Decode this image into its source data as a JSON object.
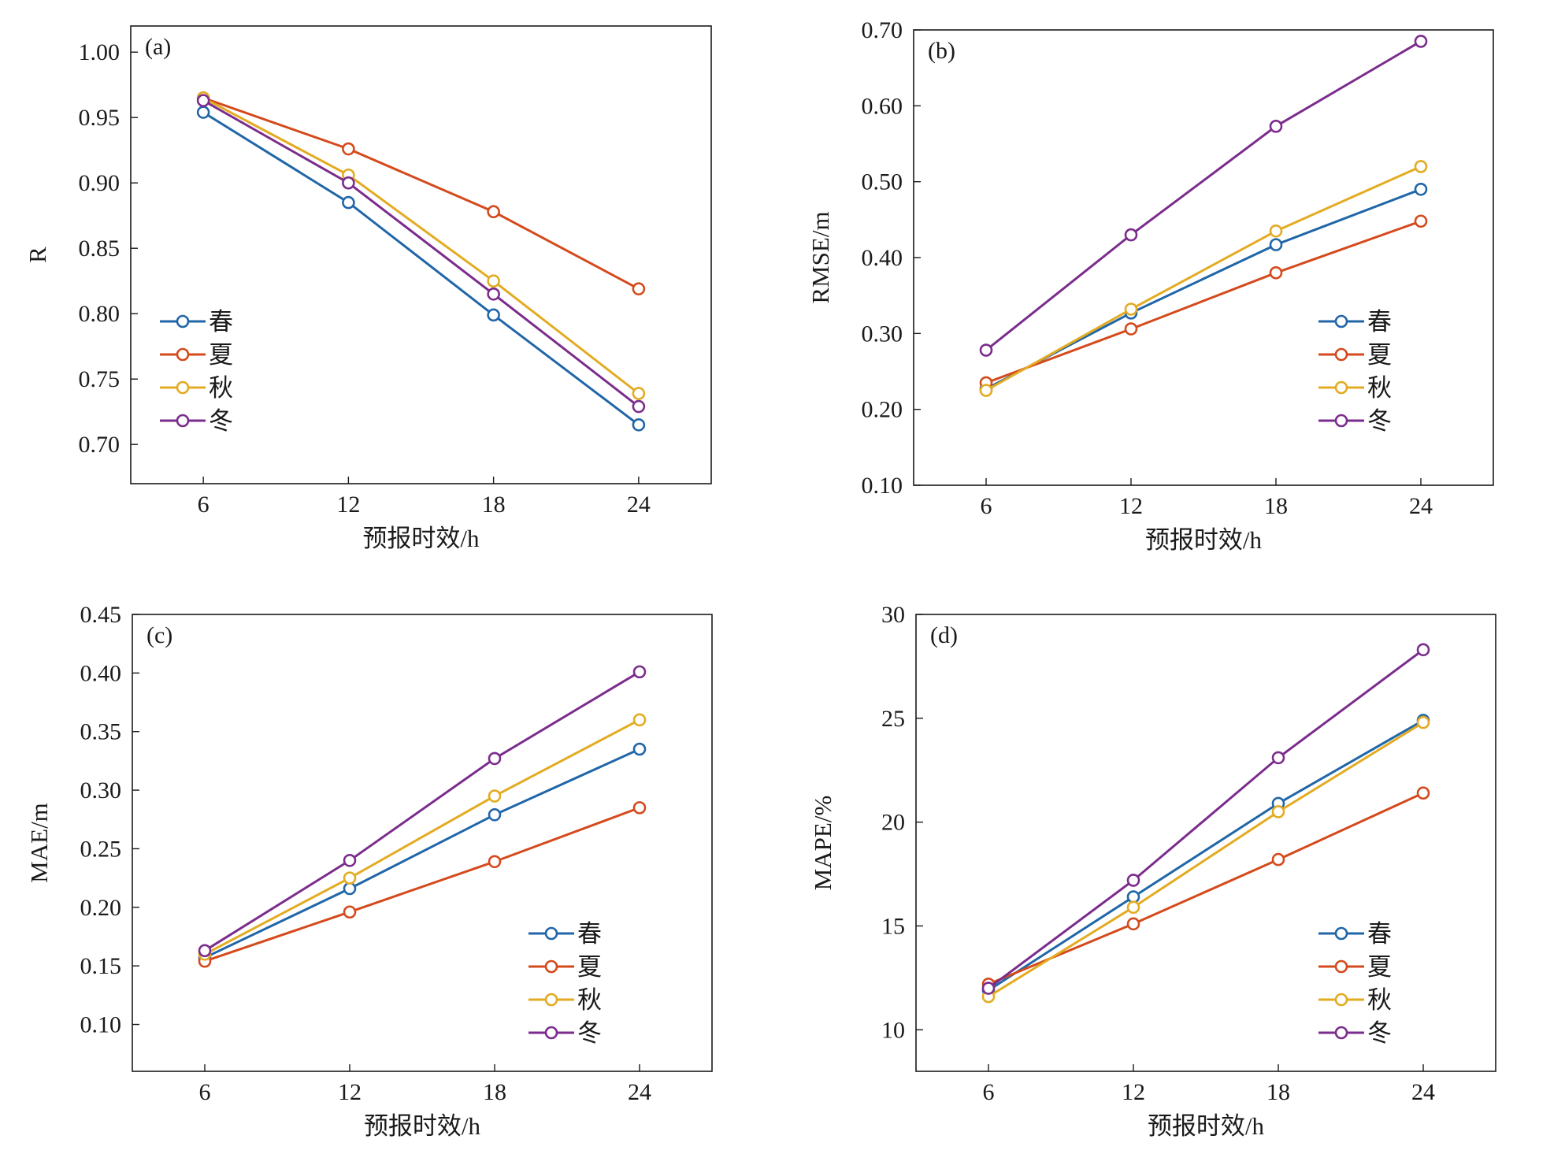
{
  "colors": {
    "春": "#2066a8",
    "夏": "#d44a1c",
    "秋": "#e3ab21",
    "冬": "#7b2c8c"
  },
  "chart_data": [
    {
      "type": "line",
      "panel_label": "(a)",
      "xlabel": "预报时效/h",
      "ylabel": "R",
      "x": [
        6,
        12,
        18,
        24
      ],
      "x_ticks": [
        "6",
        "12",
        "18",
        "24"
      ],
      "xlim": [
        3,
        27
      ],
      "ylim": [
        0.67,
        1.02
      ],
      "y_ticks": [
        "0.70",
        "0.75",
        "0.80",
        "0.85",
        "0.90",
        "0.95",
        "1.00"
      ],
      "legend_position": "center-left",
      "grid": false,
      "series": [
        {
          "name": "春",
          "values": [
            0.954,
            0.885,
            0.799,
            0.715
          ]
        },
        {
          "name": "夏",
          "values": [
            0.965,
            0.926,
            0.878,
            0.819
          ]
        },
        {
          "name": "秋",
          "values": [
            0.965,
            0.906,
            0.825,
            0.739
          ]
        },
        {
          "name": "冬",
          "values": [
            0.963,
            0.9,
            0.815,
            0.729
          ]
        }
      ]
    },
    {
      "type": "line",
      "panel_label": "(b)",
      "xlabel": "预报时效/h",
      "ylabel": "RMSE/m",
      "x": [
        6,
        12,
        18,
        24
      ],
      "x_ticks": [
        "6",
        "12",
        "18",
        "24"
      ],
      "xlim": [
        3,
        27
      ],
      "ylim": [
        0.1,
        0.7
      ],
      "y_ticks": [
        "0.10",
        "0.20",
        "0.30",
        "0.40",
        "0.50",
        "0.60",
        "0.70"
      ],
      "legend_position": "center-right",
      "grid": false,
      "series": [
        {
          "name": "春",
          "values": [
            0.227,
            0.327,
            0.417,
            0.49
          ]
        },
        {
          "name": "夏",
          "values": [
            0.235,
            0.306,
            0.38,
            0.448
          ]
        },
        {
          "name": "秋",
          "values": [
            0.225,
            0.332,
            0.435,
            0.52
          ]
        },
        {
          "name": "冬",
          "values": [
            0.278,
            0.43,
            0.573,
            0.685
          ]
        }
      ]
    },
    {
      "type": "line",
      "panel_label": "(c)",
      "xlabel": "预报时效/h",
      "ylabel": "MAE/m",
      "x": [
        6,
        12,
        18,
        24
      ],
      "x_ticks": [
        "6",
        "12",
        "18",
        "24"
      ],
      "xlim": [
        3,
        27
      ],
      "ylim": [
        0.06,
        0.45
      ],
      "y_ticks": [
        "0.10",
        "0.15",
        "0.20",
        "0.25",
        "0.30",
        "0.35",
        "0.40",
        "0.45"
      ],
      "legend_position": "bottom-right",
      "grid": false,
      "series": [
        {
          "name": "春",
          "values": [
            0.157,
            0.216,
            0.279,
            0.335
          ]
        },
        {
          "name": "夏",
          "values": [
            0.154,
            0.196,
            0.239,
            0.285
          ]
        },
        {
          "name": "秋",
          "values": [
            0.16,
            0.225,
            0.295,
            0.36
          ]
        },
        {
          "name": "冬",
          "values": [
            0.163,
            0.24,
            0.327,
            0.401
          ]
        }
      ]
    },
    {
      "type": "line",
      "panel_label": "(d)",
      "xlabel": "预报时效/h",
      "ylabel": "MAPE/%",
      "x": [
        6,
        12,
        18,
        24
      ],
      "x_ticks": [
        "6",
        "12",
        "18",
        "24"
      ],
      "xlim": [
        3,
        27
      ],
      "ylim": [
        8,
        30
      ],
      "y_ticks": [
        "10",
        "15",
        "20",
        "25",
        "30"
      ],
      "legend_position": "bottom-right",
      "grid": false,
      "series": [
        {
          "name": "春",
          "values": [
            11.9,
            16.4,
            20.9,
            24.9
          ]
        },
        {
          "name": "夏",
          "values": [
            12.2,
            15.1,
            18.2,
            21.4
          ]
        },
        {
          "name": "秋",
          "values": [
            11.6,
            15.9,
            20.5,
            24.8
          ]
        },
        {
          "name": "冬",
          "values": [
            12.0,
            17.2,
            23.1,
            28.3
          ]
        }
      ]
    }
  ]
}
